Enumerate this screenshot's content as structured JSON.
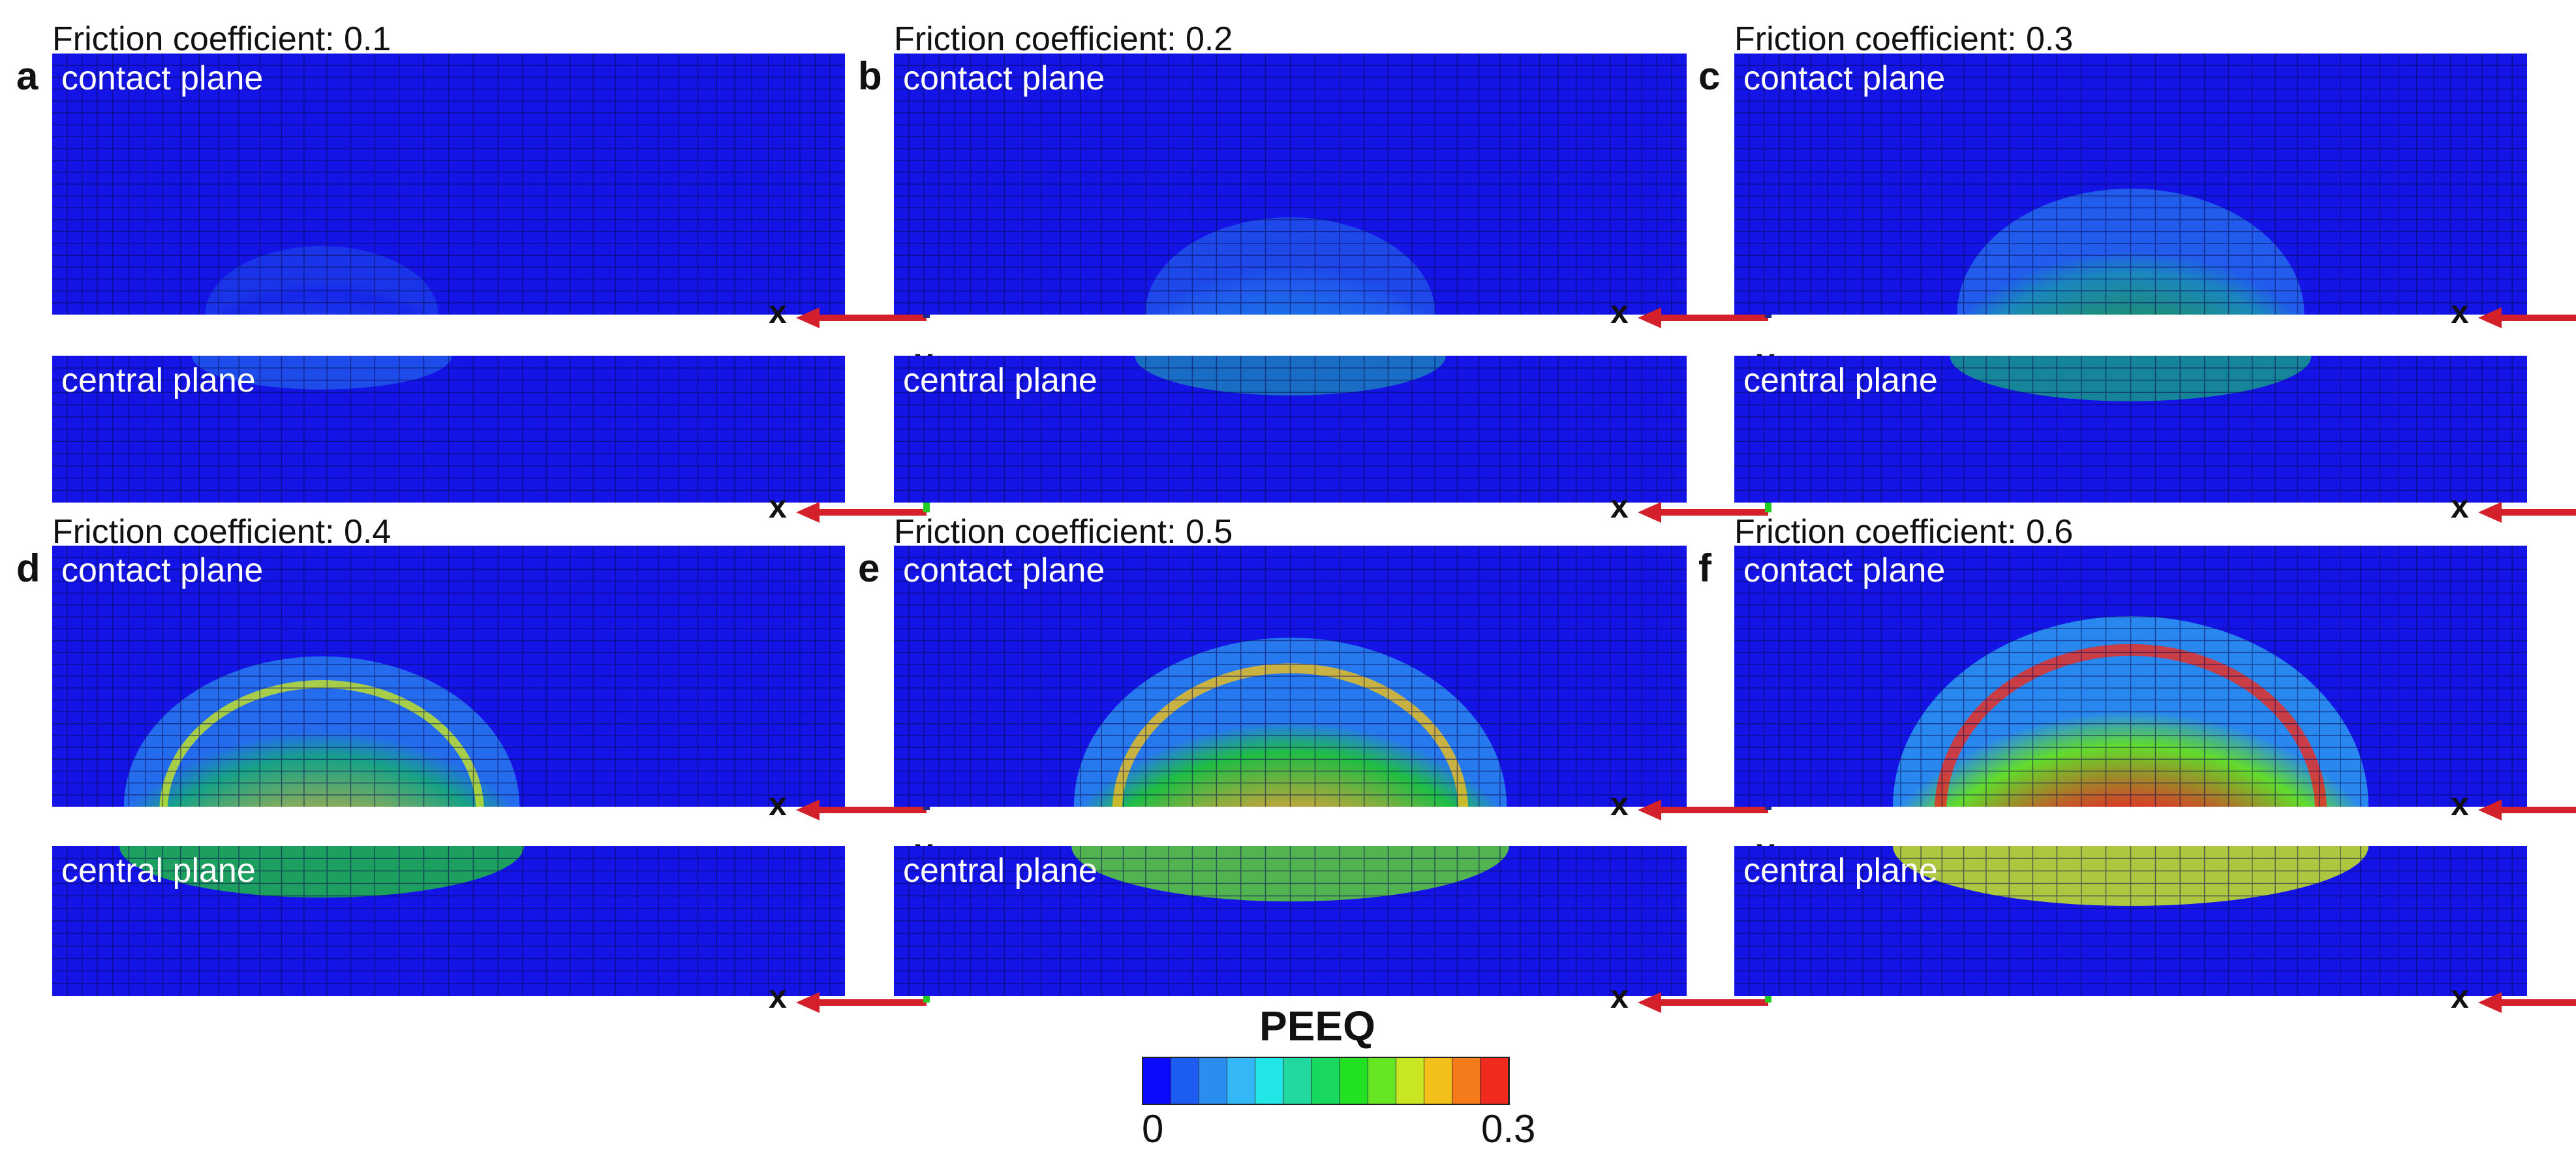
{
  "panels": [
    {
      "letter": "a",
      "title": "Friction coefficient: 0.1",
      "level": 0.15
    },
    {
      "letter": "b",
      "title": "Friction coefficient: 0.2",
      "level": 0.35
    },
    {
      "letter": "c",
      "title": "Friction coefficient: 0.3",
      "level": 0.55
    },
    {
      "letter": "d",
      "title": "Friction coefficient: 0.4",
      "level": 0.72
    },
    {
      "letter": "e",
      "title": "Friction coefficient: 0.5",
      "level": 0.85
    },
    {
      "letter": "f",
      "title": "Friction coefficient: 0.6",
      "level": 1.0
    }
  ],
  "labels": {
    "contact_plane": "contact plane",
    "central_plane": "central plane"
  },
  "axes": {
    "x": "x",
    "z": "z",
    "y": "y"
  },
  "legend": {
    "title": "PEEQ",
    "min": "0",
    "max": "0.3",
    "colors": [
      "#0a0aff",
      "#1c5cf0",
      "#2a8ef0",
      "#33b8f5",
      "#22e6e6",
      "#20d8a0",
      "#19d860",
      "#22e022",
      "#66e622",
      "#c8e622",
      "#f2c019",
      "#f57a19",
      "#f02a1c"
    ]
  },
  "colors": {
    "mesh_base": "#1414e6",
    "x_arrow": "#d4202a",
    "z_arrow": "#1e2a8a",
    "y_arrow": "#22cc22"
  }
}
